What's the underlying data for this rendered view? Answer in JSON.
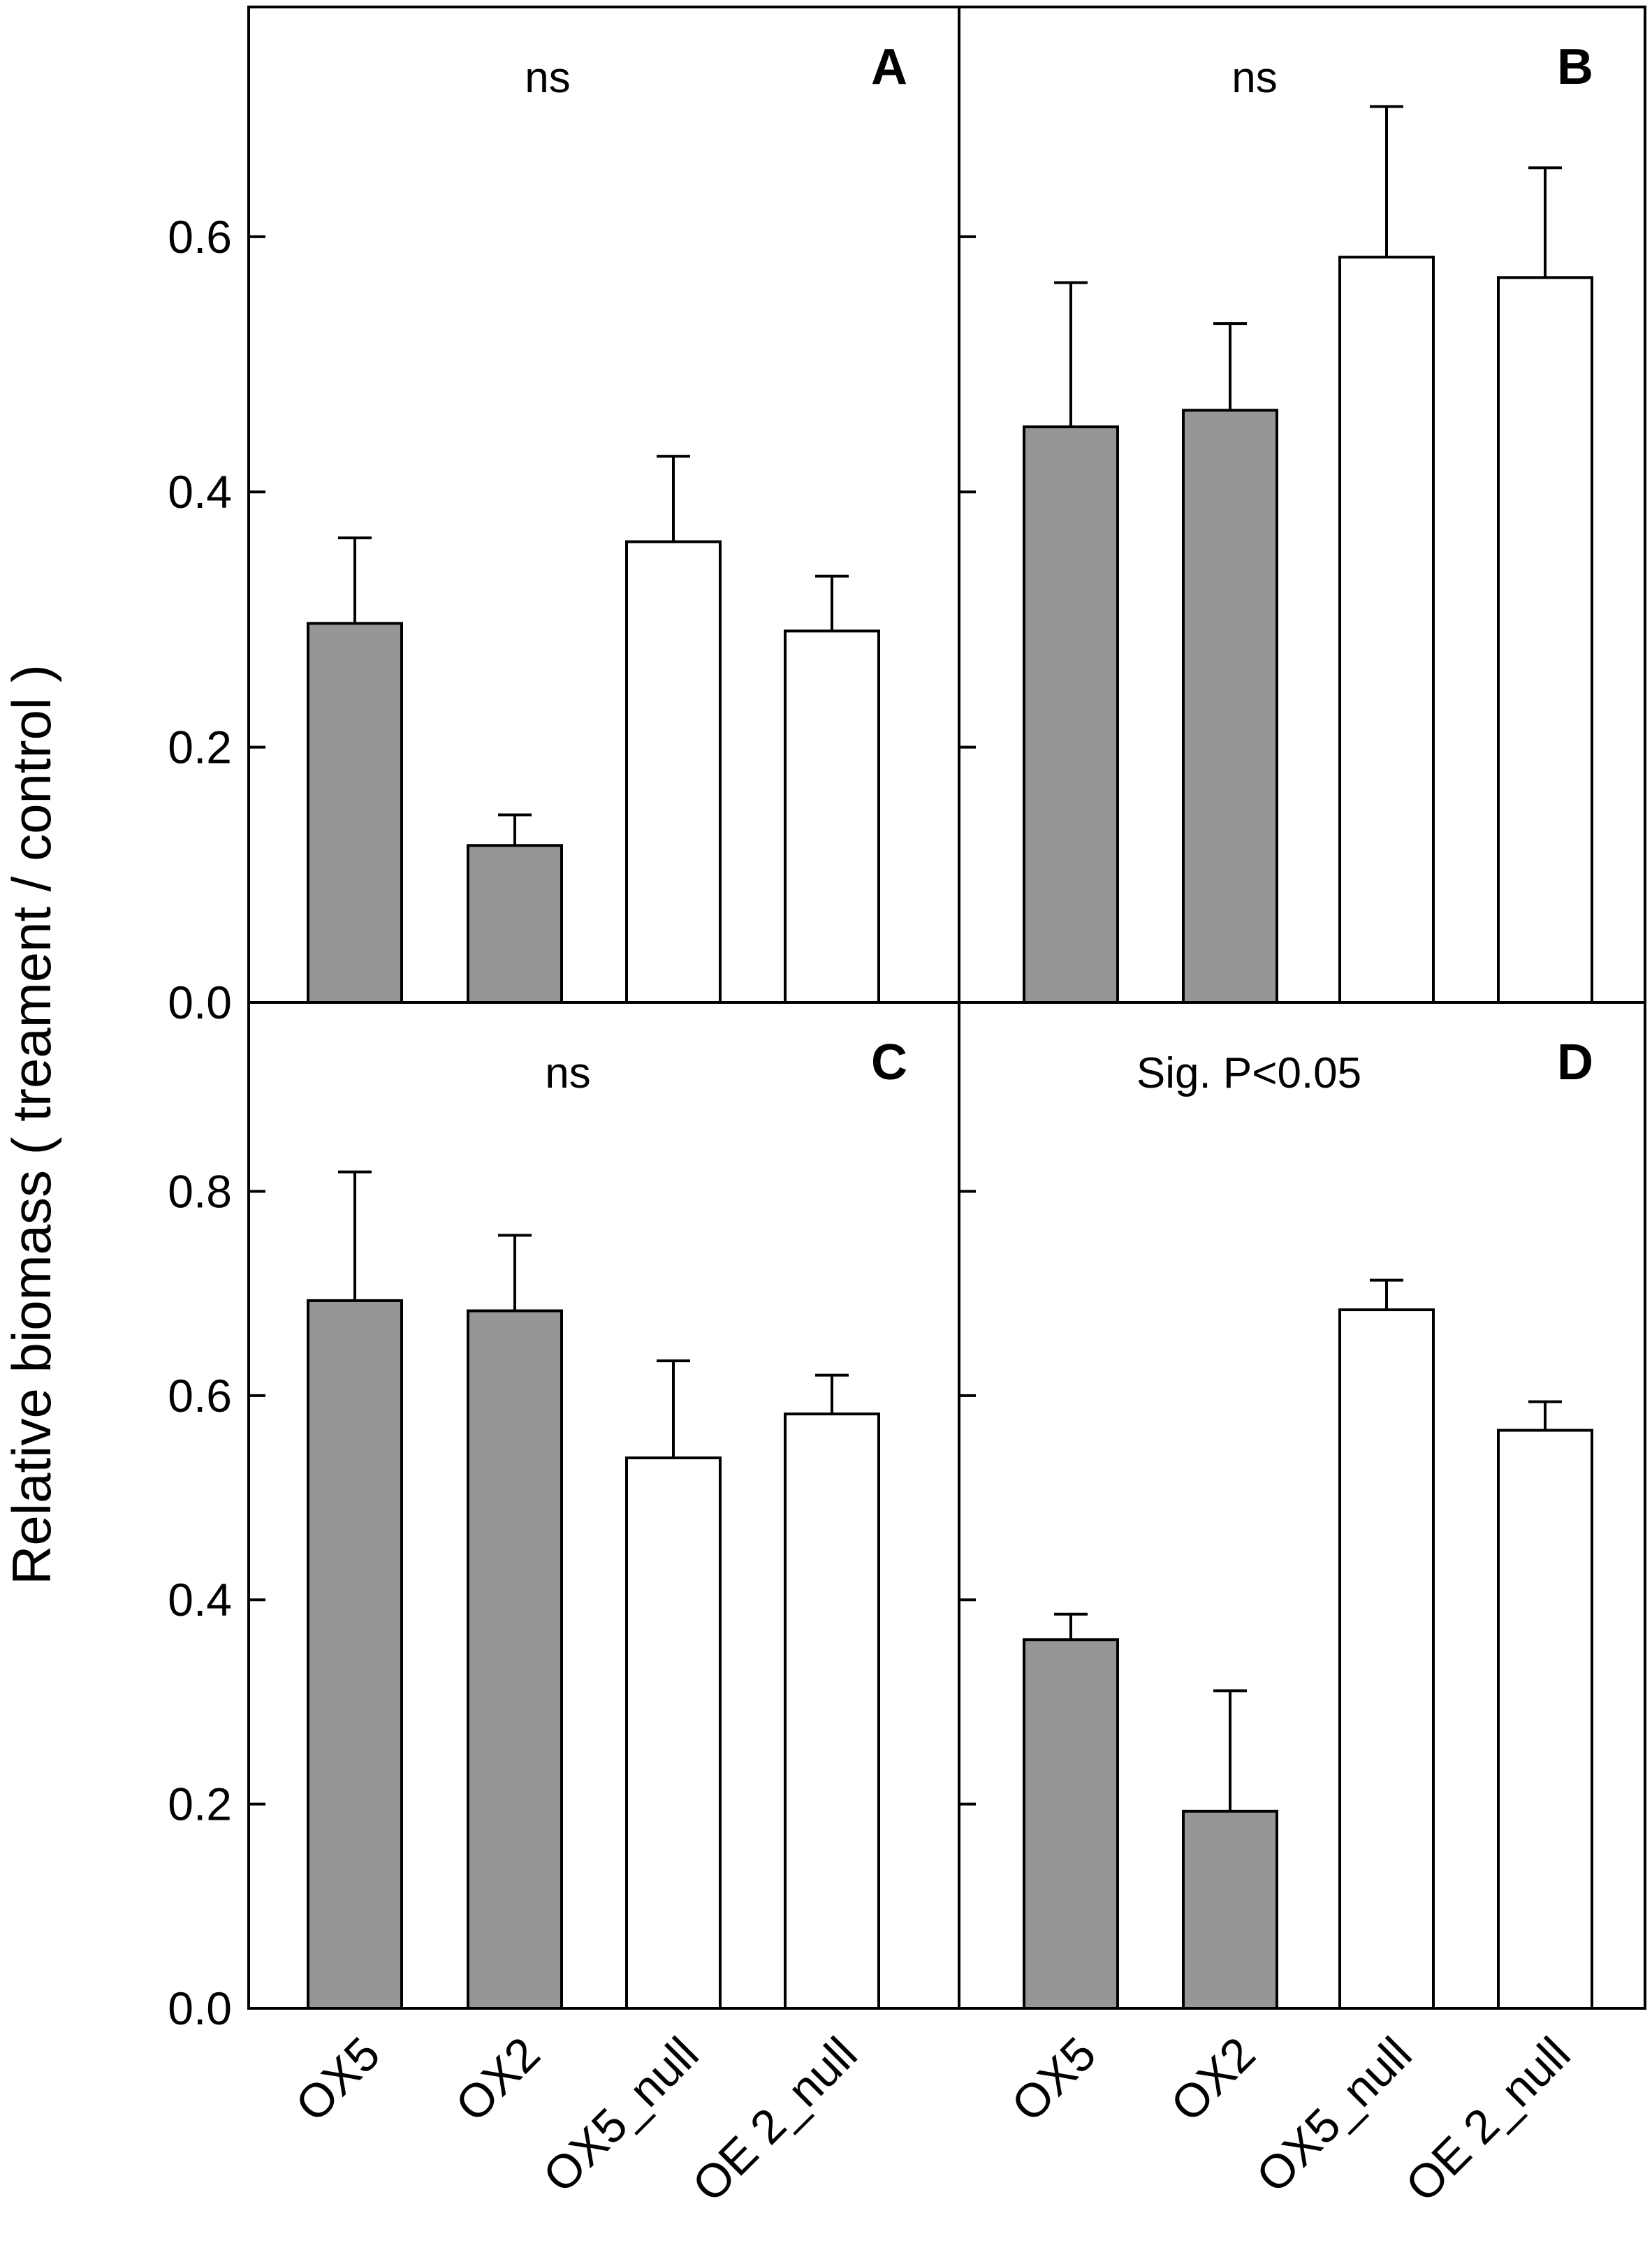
{
  "chart_data": {
    "type": "bar",
    "ylabel": "Relative biomass ( treament / control )",
    "categories": [
      "OX5",
      "OX2",
      "OX5_null",
      "OE 2_null"
    ],
    "group_colors": [
      "#969696",
      "#969696",
      "#ffffff",
      "#ffffff"
    ],
    "panels": [
      {
        "id": "A",
        "letter": "A",
        "note": "ns",
        "ylim": [
          0,
          0.78
        ],
        "yticks": [
          0.0,
          0.2,
          0.4,
          0.6
        ],
        "ytick_labels": [
          "0.0",
          "0.2",
          "0.4",
          "0.6"
        ],
        "values": [
          0.297,
          0.123,
          0.361,
          0.291
        ],
        "errors": [
          0.067,
          0.024,
          0.067,
          0.043
        ]
      },
      {
        "id": "B",
        "letter": "B",
        "note": "ns",
        "ylim": [
          0,
          0.78
        ],
        "yticks": [
          0.0,
          0.2,
          0.4,
          0.6
        ],
        "ytick_labels": [],
        "values": [
          0.451,
          0.464,
          0.584,
          0.568
        ],
        "errors": [
          0.113,
          0.068,
          0.118,
          0.086
        ]
      },
      {
        "id": "C",
        "letter": "C",
        "note": "ns",
        "ylim": [
          0,
          0.985
        ],
        "yticks": [
          0.0,
          0.2,
          0.4,
          0.6,
          0.8
        ],
        "ytick_labels": [
          "0.0",
          "0.2",
          "0.4",
          "0.6",
          "0.8"
        ],
        "values": [
          0.693,
          0.683,
          0.539,
          0.582
        ],
        "errors": [
          0.126,
          0.074,
          0.095,
          0.038
        ]
      },
      {
        "id": "D",
        "letter": "D",
        "note": "Sig. P<0.05",
        "ylim": [
          0,
          0.985
        ],
        "yticks": [
          0.0,
          0.2,
          0.4,
          0.6,
          0.8
        ],
        "ytick_labels": [],
        "values": [
          0.361,
          0.193,
          0.684,
          0.566
        ],
        "errors": [
          0.025,
          0.118,
          0.029,
          0.028
        ]
      }
    ]
  }
}
